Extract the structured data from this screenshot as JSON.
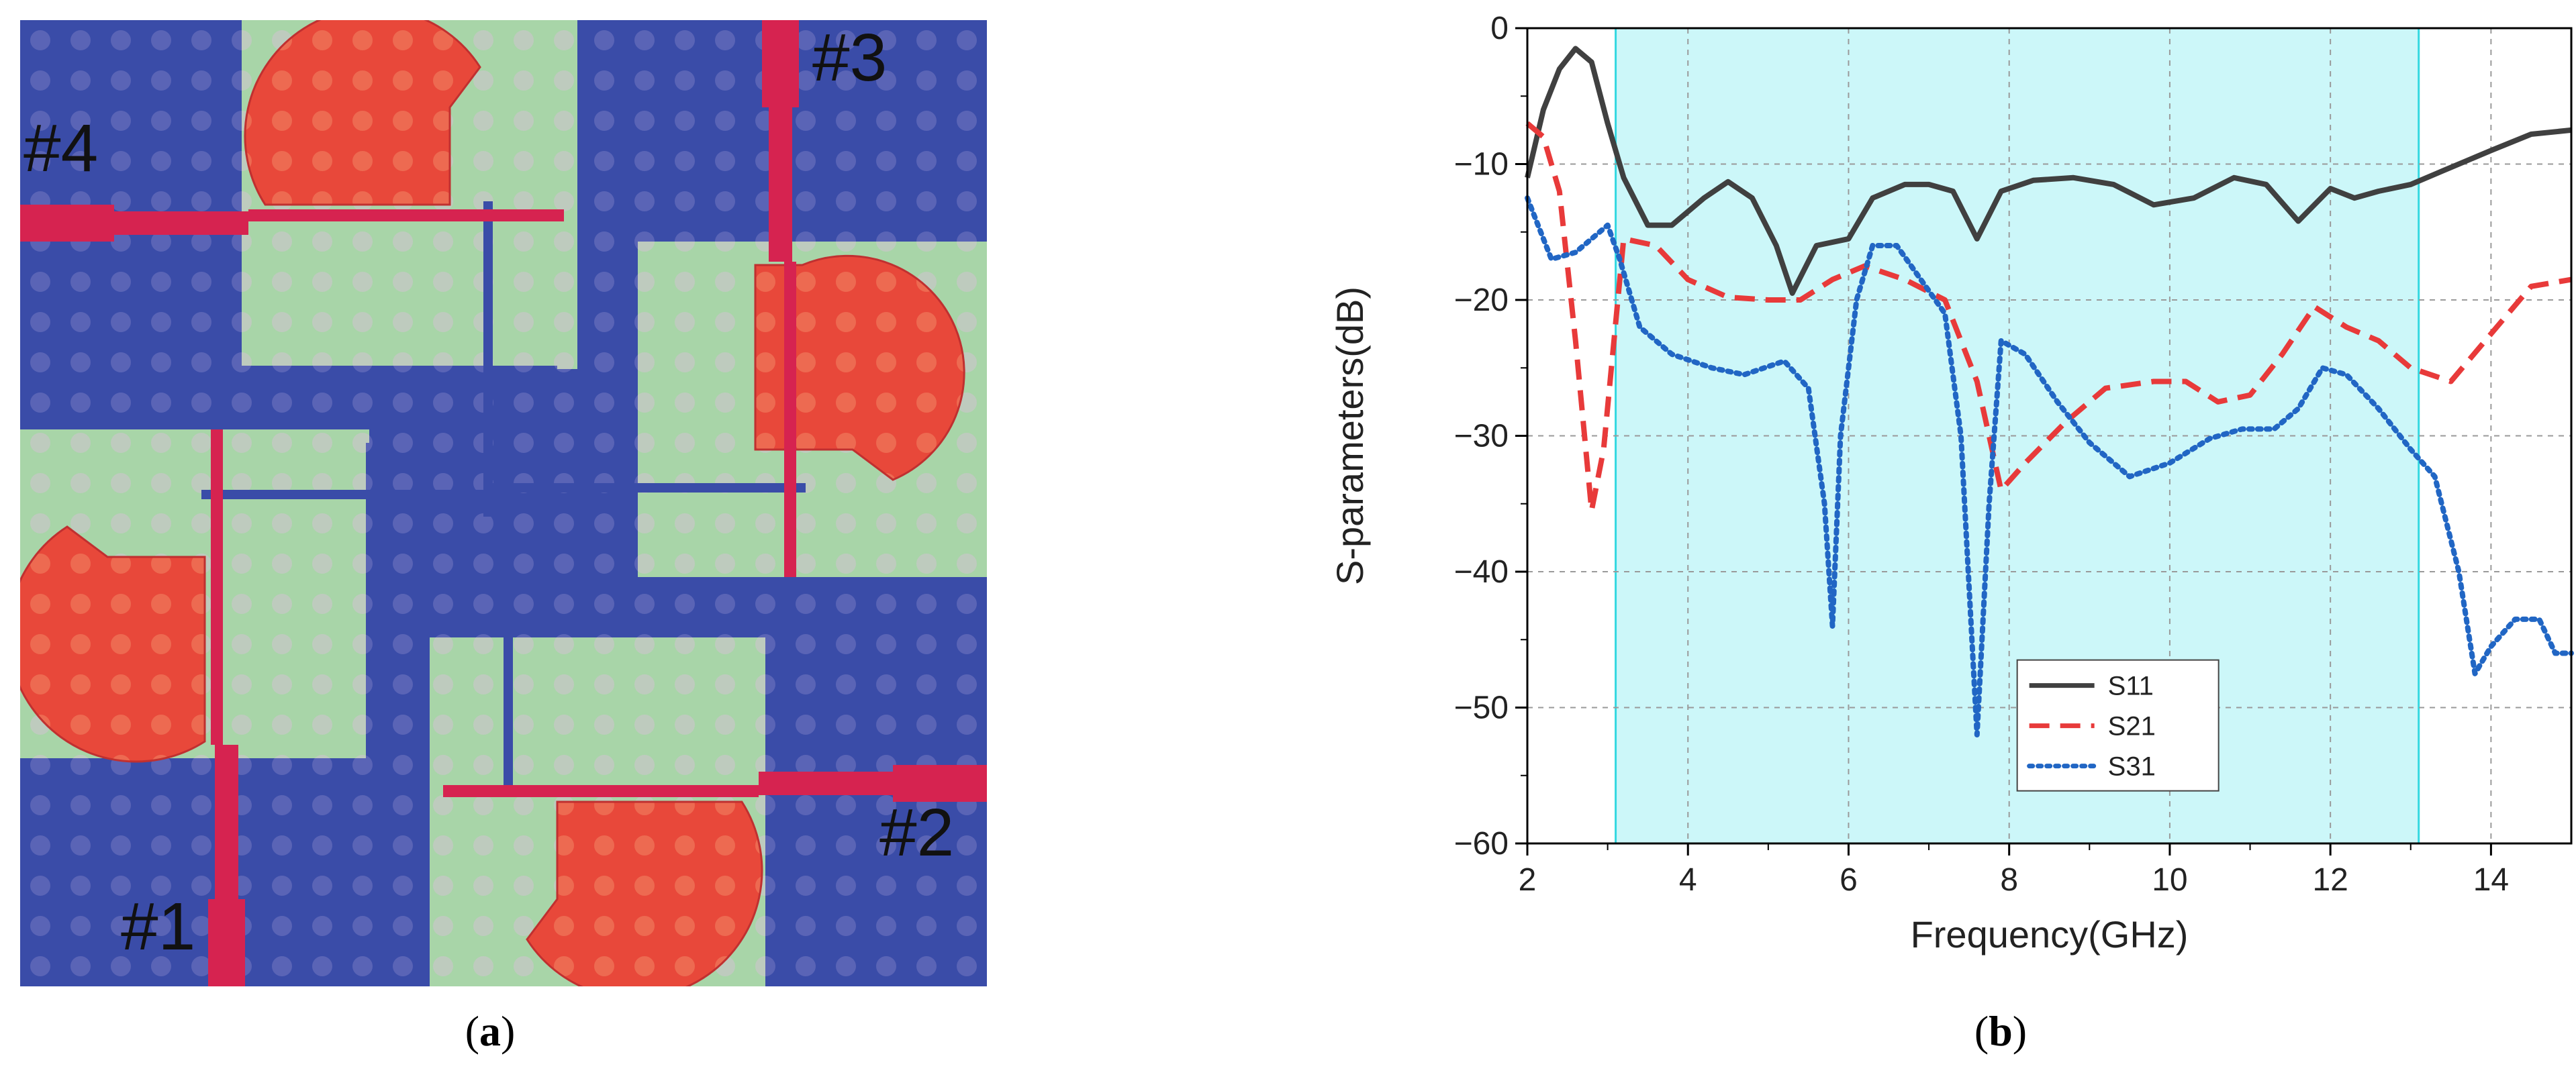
{
  "panel_a": {
    "caption": "a",
    "ports": [
      "#1",
      "#2",
      "#3",
      "#4"
    ],
    "colors": {
      "substrate_green": "#a8d5a8",
      "ground_blue": "#3a4ca8",
      "patch_red": "#e8483a",
      "feed_crimson": "#d62350"
    }
  },
  "panel_b": {
    "caption": "b"
  },
  "chart_data": {
    "type": "line",
    "xlabel": "Frequency(GHz)",
    "ylabel": "S-parameters(dB)",
    "xlim": [
      2,
      15
    ],
    "ylim": [
      -60,
      0
    ],
    "xticks": [
      2,
      4,
      6,
      8,
      10,
      12,
      14
    ],
    "yticks": [
      0,
      -10,
      -20,
      -30,
      -40,
      -50,
      -60
    ],
    "grid": true,
    "highlight_band": {
      "from": 3.1,
      "to": 13.1,
      "color": "#ccf7f9"
    },
    "legend_position": "bottom-center",
    "series": [
      {
        "name": "S11",
        "color": "#404040",
        "dash": "solid",
        "points": [
          [
            2,
            -11
          ],
          [
            2.2,
            -6
          ],
          [
            2.4,
            -3
          ],
          [
            2.6,
            -1.5
          ],
          [
            2.8,
            -2.5
          ],
          [
            3.0,
            -7
          ],
          [
            3.2,
            -11
          ],
          [
            3.5,
            -14.5
          ],
          [
            3.8,
            -14.5
          ],
          [
            4.2,
            -12.5
          ],
          [
            4.5,
            -11.3
          ],
          [
            4.8,
            -12.5
          ],
          [
            5.1,
            -16
          ],
          [
            5.3,
            -19.5
          ],
          [
            5.6,
            -16
          ],
          [
            6.0,
            -15.5
          ],
          [
            6.3,
            -12.5
          ],
          [
            6.7,
            -11.5
          ],
          [
            7.0,
            -11.5
          ],
          [
            7.3,
            -12
          ],
          [
            7.6,
            -15.5
          ],
          [
            7.9,
            -12
          ],
          [
            8.3,
            -11.2
          ],
          [
            8.8,
            -11
          ],
          [
            9.3,
            -11.5
          ],
          [
            9.8,
            -13
          ],
          [
            10.3,
            -12.5
          ],
          [
            10.8,
            -11
          ],
          [
            11.2,
            -11.5
          ],
          [
            11.6,
            -14.2
          ],
          [
            12.0,
            -11.8
          ],
          [
            12.3,
            -12.5
          ],
          [
            12.6,
            -12
          ],
          [
            13.0,
            -11.5
          ],
          [
            13.4,
            -10.5
          ],
          [
            14.0,
            -9
          ],
          [
            14.5,
            -7.8
          ],
          [
            15,
            -7.5
          ]
        ]
      },
      {
        "name": "S21",
        "color": "#e83a3a",
        "dash": "dashed",
        "points": [
          [
            2,
            -7
          ],
          [
            2.2,
            -8
          ],
          [
            2.4,
            -12
          ],
          [
            2.6,
            -23
          ],
          [
            2.8,
            -35.5
          ],
          [
            2.95,
            -31
          ],
          [
            3.2,
            -15.5
          ],
          [
            3.6,
            -16
          ],
          [
            4.0,
            -18.5
          ],
          [
            4.5,
            -19.8
          ],
          [
            5.0,
            -20
          ],
          [
            5.4,
            -20
          ],
          [
            5.8,
            -18.5
          ],
          [
            6.2,
            -17.5
          ],
          [
            6.7,
            -18.5
          ],
          [
            7.2,
            -20
          ],
          [
            7.6,
            -26
          ],
          [
            7.9,
            -34
          ],
          [
            8.2,
            -32
          ],
          [
            8.7,
            -29
          ],
          [
            9.2,
            -26.5
          ],
          [
            9.8,
            -26
          ],
          [
            10.2,
            -26
          ],
          [
            10.6,
            -27.5
          ],
          [
            11.0,
            -27
          ],
          [
            11.4,
            -24
          ],
          [
            11.8,
            -20.5
          ],
          [
            12.2,
            -22
          ],
          [
            12.6,
            -23
          ],
          [
            13.0,
            -25
          ],
          [
            13.5,
            -26
          ],
          [
            14.0,
            -22.5
          ],
          [
            14.5,
            -19
          ],
          [
            15,
            -18.5
          ]
        ]
      },
      {
        "name": "S31",
        "color": "#2166c4",
        "dash": "dotted",
        "points": [
          [
            2,
            -12.5
          ],
          [
            2.3,
            -17
          ],
          [
            2.6,
            -16.5
          ],
          [
            2.8,
            -15.5
          ],
          [
            3.0,
            -14.5
          ],
          [
            3.15,
            -17
          ],
          [
            3.4,
            -22
          ],
          [
            3.8,
            -24
          ],
          [
            4.3,
            -25
          ],
          [
            4.7,
            -25.5
          ],
          [
            5.2,
            -24.5
          ],
          [
            5.5,
            -26.5
          ],
          [
            5.7,
            -35
          ],
          [
            5.8,
            -44
          ],
          [
            5.9,
            -30
          ],
          [
            6.1,
            -20
          ],
          [
            6.3,
            -16
          ],
          [
            6.6,
            -16
          ],
          [
            6.9,
            -18.5
          ],
          [
            7.2,
            -21
          ],
          [
            7.4,
            -30
          ],
          [
            7.6,
            -52
          ],
          [
            7.75,
            -35
          ],
          [
            7.9,
            -23
          ],
          [
            8.2,
            -24
          ],
          [
            8.6,
            -27.5
          ],
          [
            9.0,
            -30.5
          ],
          [
            9.5,
            -33
          ],
          [
            10.0,
            -32
          ],
          [
            10.5,
            -30.2
          ],
          [
            10.9,
            -29.5
          ],
          [
            11.3,
            -29.5
          ],
          [
            11.6,
            -28
          ],
          [
            11.9,
            -25
          ],
          [
            12.2,
            -25.5
          ],
          [
            12.6,
            -28
          ],
          [
            13.0,
            -31
          ],
          [
            13.3,
            -33
          ],
          [
            13.6,
            -40
          ],
          [
            13.8,
            -47.5
          ],
          [
            14.0,
            -45.5
          ],
          [
            14.3,
            -43.5
          ],
          [
            14.6,
            -43.5
          ],
          [
            14.8,
            -46
          ],
          [
            15,
            -46
          ]
        ]
      }
    ]
  }
}
